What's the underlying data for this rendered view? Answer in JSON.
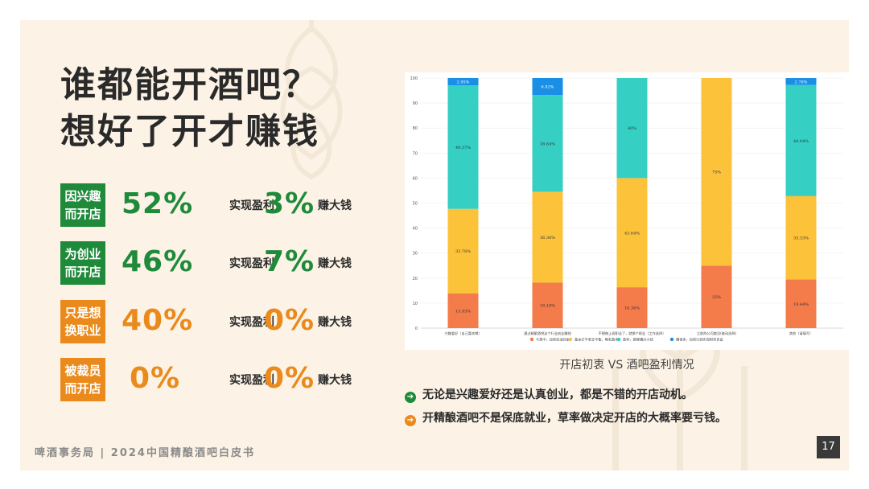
{
  "title": {
    "line1": "谁都能开酒吧？",
    "line2": "想好了开才赚钱"
  },
  "stats": [
    {
      "tag1": "因兴趣",
      "tag2": "而开店",
      "profit_pct": "52%",
      "profit_label": "实现盈利",
      "big_pct": "3%",
      "big_label": "赚大钱",
      "color": "#1e8a3a"
    },
    {
      "tag1": "为创业",
      "tag2": "而开店",
      "profit_pct": "46%",
      "profit_label": "实现盈利",
      "big_pct": "7%",
      "big_label": "赚大钱",
      "color": "#1e8a3a"
    },
    {
      "tag1": "只是想",
      "tag2": "换职业",
      "profit_pct": "40%",
      "profit_label": "实现盈利",
      "big_pct": "0%",
      "big_label": "赚大钱",
      "color": "#ea8a1c"
    },
    {
      "tag1": "被裁员",
      "tag2": "而开店",
      "profit_pct": "0%",
      "profit_label": "实现盈利",
      "big_pct": "0%",
      "big_label": "赚大钱",
      "color": "#ea8a1c"
    }
  ],
  "chart_caption": "开店初衷 VS 酒吧盈利情况",
  "chart_data": {
    "type": "bar",
    "stacked": true,
    "categories": [
      "兴趣爱好（自己喜欢喝）",
      "通过精酿酒吧这个行业创业赚钱",
      "不想做上班职业了，就换个职业（工作选择）",
      "之前的公司裁员(被动选择)",
      "其他（请填写）"
    ],
    "ylim": [
      0,
      100
    ],
    "yticks": [
      0,
      10,
      20,
      30,
      40,
      50,
      60,
      70,
      80,
      90,
      100
    ],
    "series": [
      {
        "name": "亏损中，目前还没回本",
        "color": "#f47b4a",
        "values": [
          13.93,
          18.18,
          16.36,
          25,
          19.44
        ],
        "labels": [
          "13.93%",
          "18.18%",
          "16.36%",
          "25%",
          "19.44%"
        ]
      },
      {
        "name": "基本打平收支平衡，略有盈余",
        "color": "#fcc23a",
        "values": [
          33.76,
          36.36,
          43.64,
          75,
          33.33
        ],
        "labels": [
          "33.76%",
          "36.36%",
          "43.64%",
          "75%",
          "33.33%"
        ]
      },
      {
        "name": "盈利，能够赚点小钱",
        "color": "#35cfc4",
        "values": [
          49.37,
          38.64,
          40,
          0,
          44.44
        ],
        "labels": [
          "49.37%",
          "38.64%",
          "40%",
          "",
          "44.44%"
        ]
      },
      {
        "name": "赚很多，目前已经实现财务自由",
        "color": "#1a8fe6",
        "values": [
          2.95,
          6.82,
          0,
          0,
          2.78
        ],
        "labels": [
          "2.95%",
          "6.82%",
          "",
          "",
          "2.78%"
        ]
      }
    ],
    "legend_position": "bottom"
  },
  "bullets": [
    {
      "text": "无论是兴趣爱好还是认真创业，都是不错的开店动机。",
      "color": "#1e8a3a",
      "icon": "arrow-right-icon"
    },
    {
      "text": "开精酿酒吧不是保底就业，草率做决定开店的大概率要亏钱。",
      "color": "#ea8a1c",
      "icon": "arrow-right-icon"
    }
  ],
  "footer": "啤酒事务局 | 2024中国精酿酒吧白皮书",
  "page_number": "17"
}
